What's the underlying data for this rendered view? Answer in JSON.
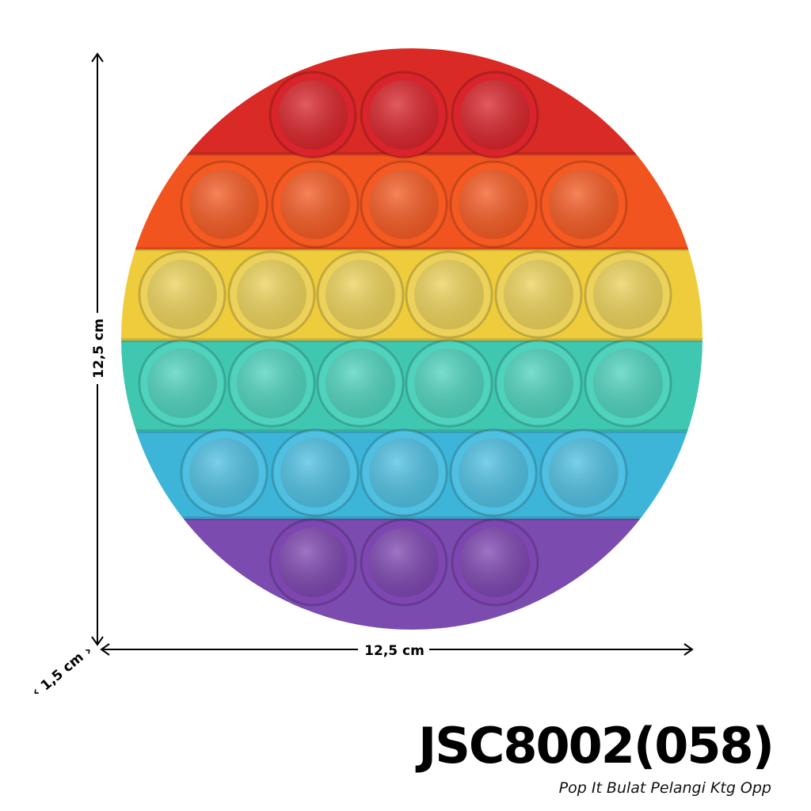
{
  "product": {
    "code": "JSC8002(058)",
    "name": "Pop It Bulat Pelangi Ktg Opp",
    "dimensions": {
      "height": "12,5 cm",
      "width": "12,5 cm",
      "depth": "1,5 cm"
    },
    "band_colors": [
      "#d92a25",
      "#f2541f",
      "#efcc3c",
      "#3fc7b1",
      "#3cb5d9",
      "#7b4bb0"
    ],
    "bubble_colors": [
      "#d8242a",
      "#f45a22",
      "#ecd25a",
      "#4fd3bd",
      "#4fc0e2",
      "#7d46b0"
    ]
  }
}
